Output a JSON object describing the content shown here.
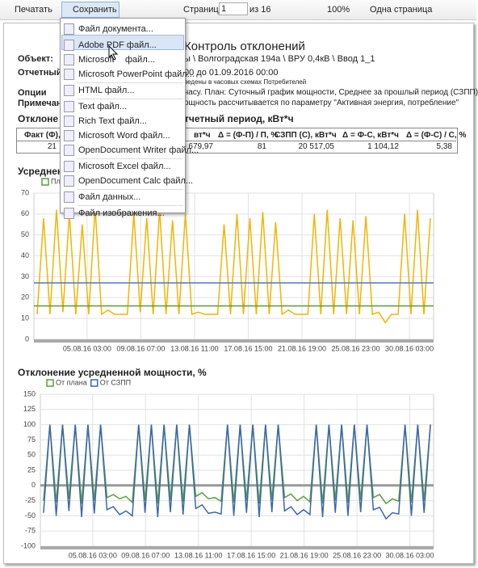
{
  "toolbar": {
    "print": "Печатать",
    "save": "Сохранить",
    "page_label": "Страница",
    "page": "1",
    "page_of": "из 16",
    "zoom": "100%",
    "view": "Одна страница"
  },
  "save_menu": {
    "items": [
      {
        "label": "Файл документа..."
      },
      {
        "label": "Adobe PDF файл..."
      },
      {
        "label": "Microsoft",
        "tail": "файл..."
      },
      {
        "label": "Microsoft PowerPoint файл..."
      },
      {
        "label": "HTML файл..."
      },
      {
        "label": "Text файл..."
      },
      {
        "label": "Rich Text файл..."
      },
      {
        "label": "Microsoft Word файл..."
      },
      {
        "label": "OpenDocument Writer файл..."
      },
      {
        "label": "Microsoft Excel файл..."
      },
      {
        "label": "OpenDocument Calc файл..."
      },
      {
        "label": "Файл данных..."
      },
      {
        "label": "Файл изображения..."
      }
    ]
  },
  "report": {
    "title": "Контроль отклонений",
    "object_label": "Объект:",
    "object_value": "ы \\ Волгоградская 194а \\ ВРУ 0,4кВ \\ Ввод 1_1",
    "period_label": "Отчетный п",
    "period_value": "00 до 01.09.2016 00:00",
    "note_small": "ведены в часовых схемах Потребителей",
    "options_label": "Опции",
    "options_value": "часу. План: Суточный график мощности, Среднее за прошлый период (СЗПП): да",
    "remarks_label": "Примечани",
    "remarks_value": "ощность рассчитывается по параметру \"Активная энергия, потребление\"",
    "section_left": "Отклоне",
    "section_right": "тчетный период, кВт*ч",
    "table": {
      "headers": [
        "Факт (Ф), ",
        "вт*ч",
        "Δ = (Ф-П) / П, %",
        "СЗПП (С), кВт*ч",
        "Δ = Ф-С, кВт*ч",
        "Δ = (Ф-С) / С, %"
      ],
      "row": [
        "21",
        "9 679,97",
        "81",
        "20 517,05",
        "1 104,12",
        "5,38"
      ]
    },
    "chart1_title_left": "Усреднен"
  },
  "chart_data": [
    {
      "type": "line",
      "xlim": [
        0,
        31
      ],
      "ylim": [
        0,
        70
      ],
      "yticks": [
        0,
        10,
        20,
        30,
        40,
        50,
        60,
        70
      ],
      "grid": true,
      "xticks": [
        {
          "value": 4.125,
          "label": "05.08.16 03:00"
        },
        {
          "value": 8.29,
          "label": "09.08.16 07:00"
        },
        {
          "value": 12.46,
          "label": "13.08.16 11:00"
        },
        {
          "value": 16.625,
          "label": "17.08.16 15:00"
        },
        {
          "value": 20.79,
          "label": "21.08.16 19:00"
        },
        {
          "value": 24.96,
          "label": "25.08.16 23:00"
        },
        {
          "value": 29.125,
          "label": "30.08.16 03:00"
        }
      ],
      "series": [
        {
          "color": "#f5b400",
          "values": [
            12,
            58,
            12,
            62,
            13,
            60,
            12,
            55,
            12,
            63,
            12,
            14,
            12,
            12,
            12,
            60,
            13,
            58,
            12,
            62,
            12,
            57,
            12,
            60,
            12,
            13,
            12,
            12,
            12,
            55,
            12,
            60,
            12,
            58,
            12,
            61,
            12,
            56,
            12,
            14,
            12,
            12,
            12,
            60,
            12,
            62,
            12,
            58,
            12,
            57,
            12,
            59,
            12,
            13,
            8,
            12,
            12,
            60,
            12,
            62,
            12,
            58
          ]
        },
        {
          "color": "#4a7ac6",
          "value": 27
        },
        {
          "name": "План",
          "color": "#5aa03a",
          "value": 16
        }
      ]
    },
    {
      "type": "line",
      "title": "Отклонение усредненной мощности, %",
      "xlim": [
        0,
        31
      ],
      "ylim": [
        -100,
        150
      ],
      "yticks": [
        -100,
        -75,
        -50,
        -25,
        0,
        25,
        50,
        75,
        100,
        125,
        150
      ],
      "grid": true,
      "xticks": [
        {
          "value": 4.125,
          "label": "05.08.16 03:00"
        },
        {
          "value": 8.29,
          "label": "09.08.16 07:00"
        },
        {
          "value": 12.46,
          "label": "13.08.16 11:00"
        },
        {
          "value": 16.625,
          "label": "17.08.16 15:00"
        },
        {
          "value": 20.79,
          "label": "21.08.16 19:00"
        },
        {
          "value": 24.96,
          "label": "25.08.16 23:00"
        },
        {
          "value": 29.125,
          "label": "30.08.16 03:00"
        }
      ],
      "series": [
        {
          "name": "От плана",
          "color": "#5aa03a",
          "values": [
            -25,
            100,
            -28,
            100,
            -22,
            100,
            -30,
            100,
            -25,
            100,
            -20,
            -15,
            -22,
            -18,
            -28,
            100,
            -25,
            100,
            -30,
            100,
            -24,
            100,
            -27,
            100,
            -18,
            -12,
            -22,
            -20,
            -26,
            100,
            -28,
            100,
            -25,
            100,
            -30,
            100,
            -24,
            100,
            -20,
            -14,
            -25,
            -18,
            -27,
            100,
            -30,
            100,
            -25,
            100,
            -28,
            100,
            -24,
            100,
            -20,
            -15,
            -30,
            -22,
            -26,
            100,
            -28,
            100,
            -25,
            100
          ]
        },
        {
          "name": "От СЗПП",
          "color": "#3b67b0",
          "values": [
            -45,
            100,
            -50,
            100,
            -42,
            100,
            -52,
            100,
            -46,
            100,
            -40,
            -35,
            -48,
            -42,
            -50,
            100,
            -45,
            100,
            -52,
            100,
            -44,
            100,
            -48,
            100,
            -38,
            -32,
            -46,
            -44,
            -47,
            100,
            -50,
            100,
            -45,
            100,
            -52,
            100,
            -44,
            100,
            -42,
            -35,
            -48,
            -40,
            -48,
            100,
            -52,
            100,
            -45,
            100,
            -50,
            100,
            -44,
            100,
            -40,
            -36,
            -55,
            -45,
            -47,
            100,
            -50,
            100,
            -45,
            100
          ]
        }
      ]
    }
  ]
}
